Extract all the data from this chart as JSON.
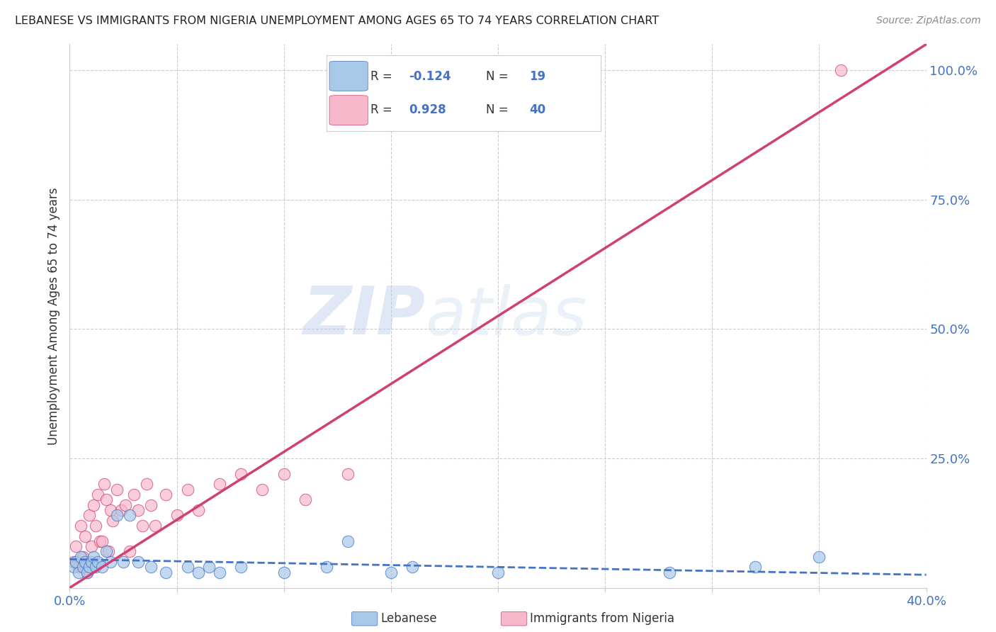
{
  "title": "LEBANESE VS IMMIGRANTS FROM NIGERIA UNEMPLOYMENT AMONG AGES 65 TO 74 YEARS CORRELATION CHART",
  "source": "Source: ZipAtlas.com",
  "ylabel": "Unemployment Among Ages 65 to 74 years",
  "xlim": [
    0.0,
    0.4
  ],
  "ylim": [
    0.0,
    1.05
  ],
  "y_ticks": [
    0.0,
    0.25,
    0.5,
    0.75,
    1.0
  ],
  "y_tick_labels": [
    "",
    "25.0%",
    "50.0%",
    "75.0%",
    "100.0%"
  ],
  "watermark_zip": "ZIP",
  "watermark_atlas": "atlas",
  "blue_scatter_x": [
    0.002,
    0.003,
    0.004,
    0.005,
    0.006,
    0.007,
    0.008,
    0.009,
    0.01,
    0.011,
    0.012,
    0.013,
    0.015,
    0.017,
    0.019,
    0.022,
    0.025,
    0.028,
    0.032,
    0.038,
    0.045,
    0.055,
    0.06,
    0.065,
    0.07,
    0.08,
    0.1,
    0.12,
    0.13,
    0.15,
    0.16,
    0.2,
    0.28,
    0.32,
    0.35
  ],
  "blue_scatter_y": [
    0.04,
    0.05,
    0.03,
    0.06,
    0.04,
    0.05,
    0.03,
    0.04,
    0.05,
    0.06,
    0.04,
    0.05,
    0.04,
    0.07,
    0.05,
    0.14,
    0.05,
    0.14,
    0.05,
    0.04,
    0.03,
    0.04,
    0.03,
    0.04,
    0.03,
    0.04,
    0.03,
    0.04,
    0.09,
    0.03,
    0.04,
    0.03,
    0.03,
    0.04,
    0.06
  ],
  "pink_scatter_x": [
    0.002,
    0.003,
    0.004,
    0.005,
    0.006,
    0.007,
    0.008,
    0.009,
    0.01,
    0.011,
    0.012,
    0.013,
    0.014,
    0.015,
    0.016,
    0.017,
    0.018,
    0.019,
    0.02,
    0.022,
    0.024,
    0.026,
    0.028,
    0.03,
    0.032,
    0.034,
    0.036,
    0.038,
    0.04,
    0.045,
    0.05,
    0.055,
    0.06,
    0.07,
    0.08,
    0.09,
    0.1,
    0.11,
    0.13,
    0.36
  ],
  "pink_scatter_y": [
    0.05,
    0.08,
    0.04,
    0.12,
    0.06,
    0.1,
    0.03,
    0.14,
    0.08,
    0.16,
    0.12,
    0.18,
    0.09,
    0.09,
    0.2,
    0.17,
    0.07,
    0.15,
    0.13,
    0.19,
    0.15,
    0.16,
    0.07,
    0.18,
    0.15,
    0.12,
    0.2,
    0.16,
    0.12,
    0.18,
    0.14,
    0.19,
    0.15,
    0.2,
    0.22,
    0.19,
    0.22,
    0.17,
    0.22,
    1.0
  ],
  "blue_line_x": [
    0.0,
    0.4
  ],
  "blue_line_y": [
    0.055,
    0.025
  ],
  "pink_line_x": [
    0.0,
    0.4
  ],
  "pink_line_y": [
    0.0,
    1.05
  ],
  "title_color": "#222222",
  "blue_color": "#a8c8e8",
  "pink_color": "#f8b8cc",
  "blue_line_color": "#4472c4",
  "pink_line_color": "#d04070",
  "axis_color": "#4472c4",
  "grid_color": "#cccccc",
  "source_color": "#888888"
}
